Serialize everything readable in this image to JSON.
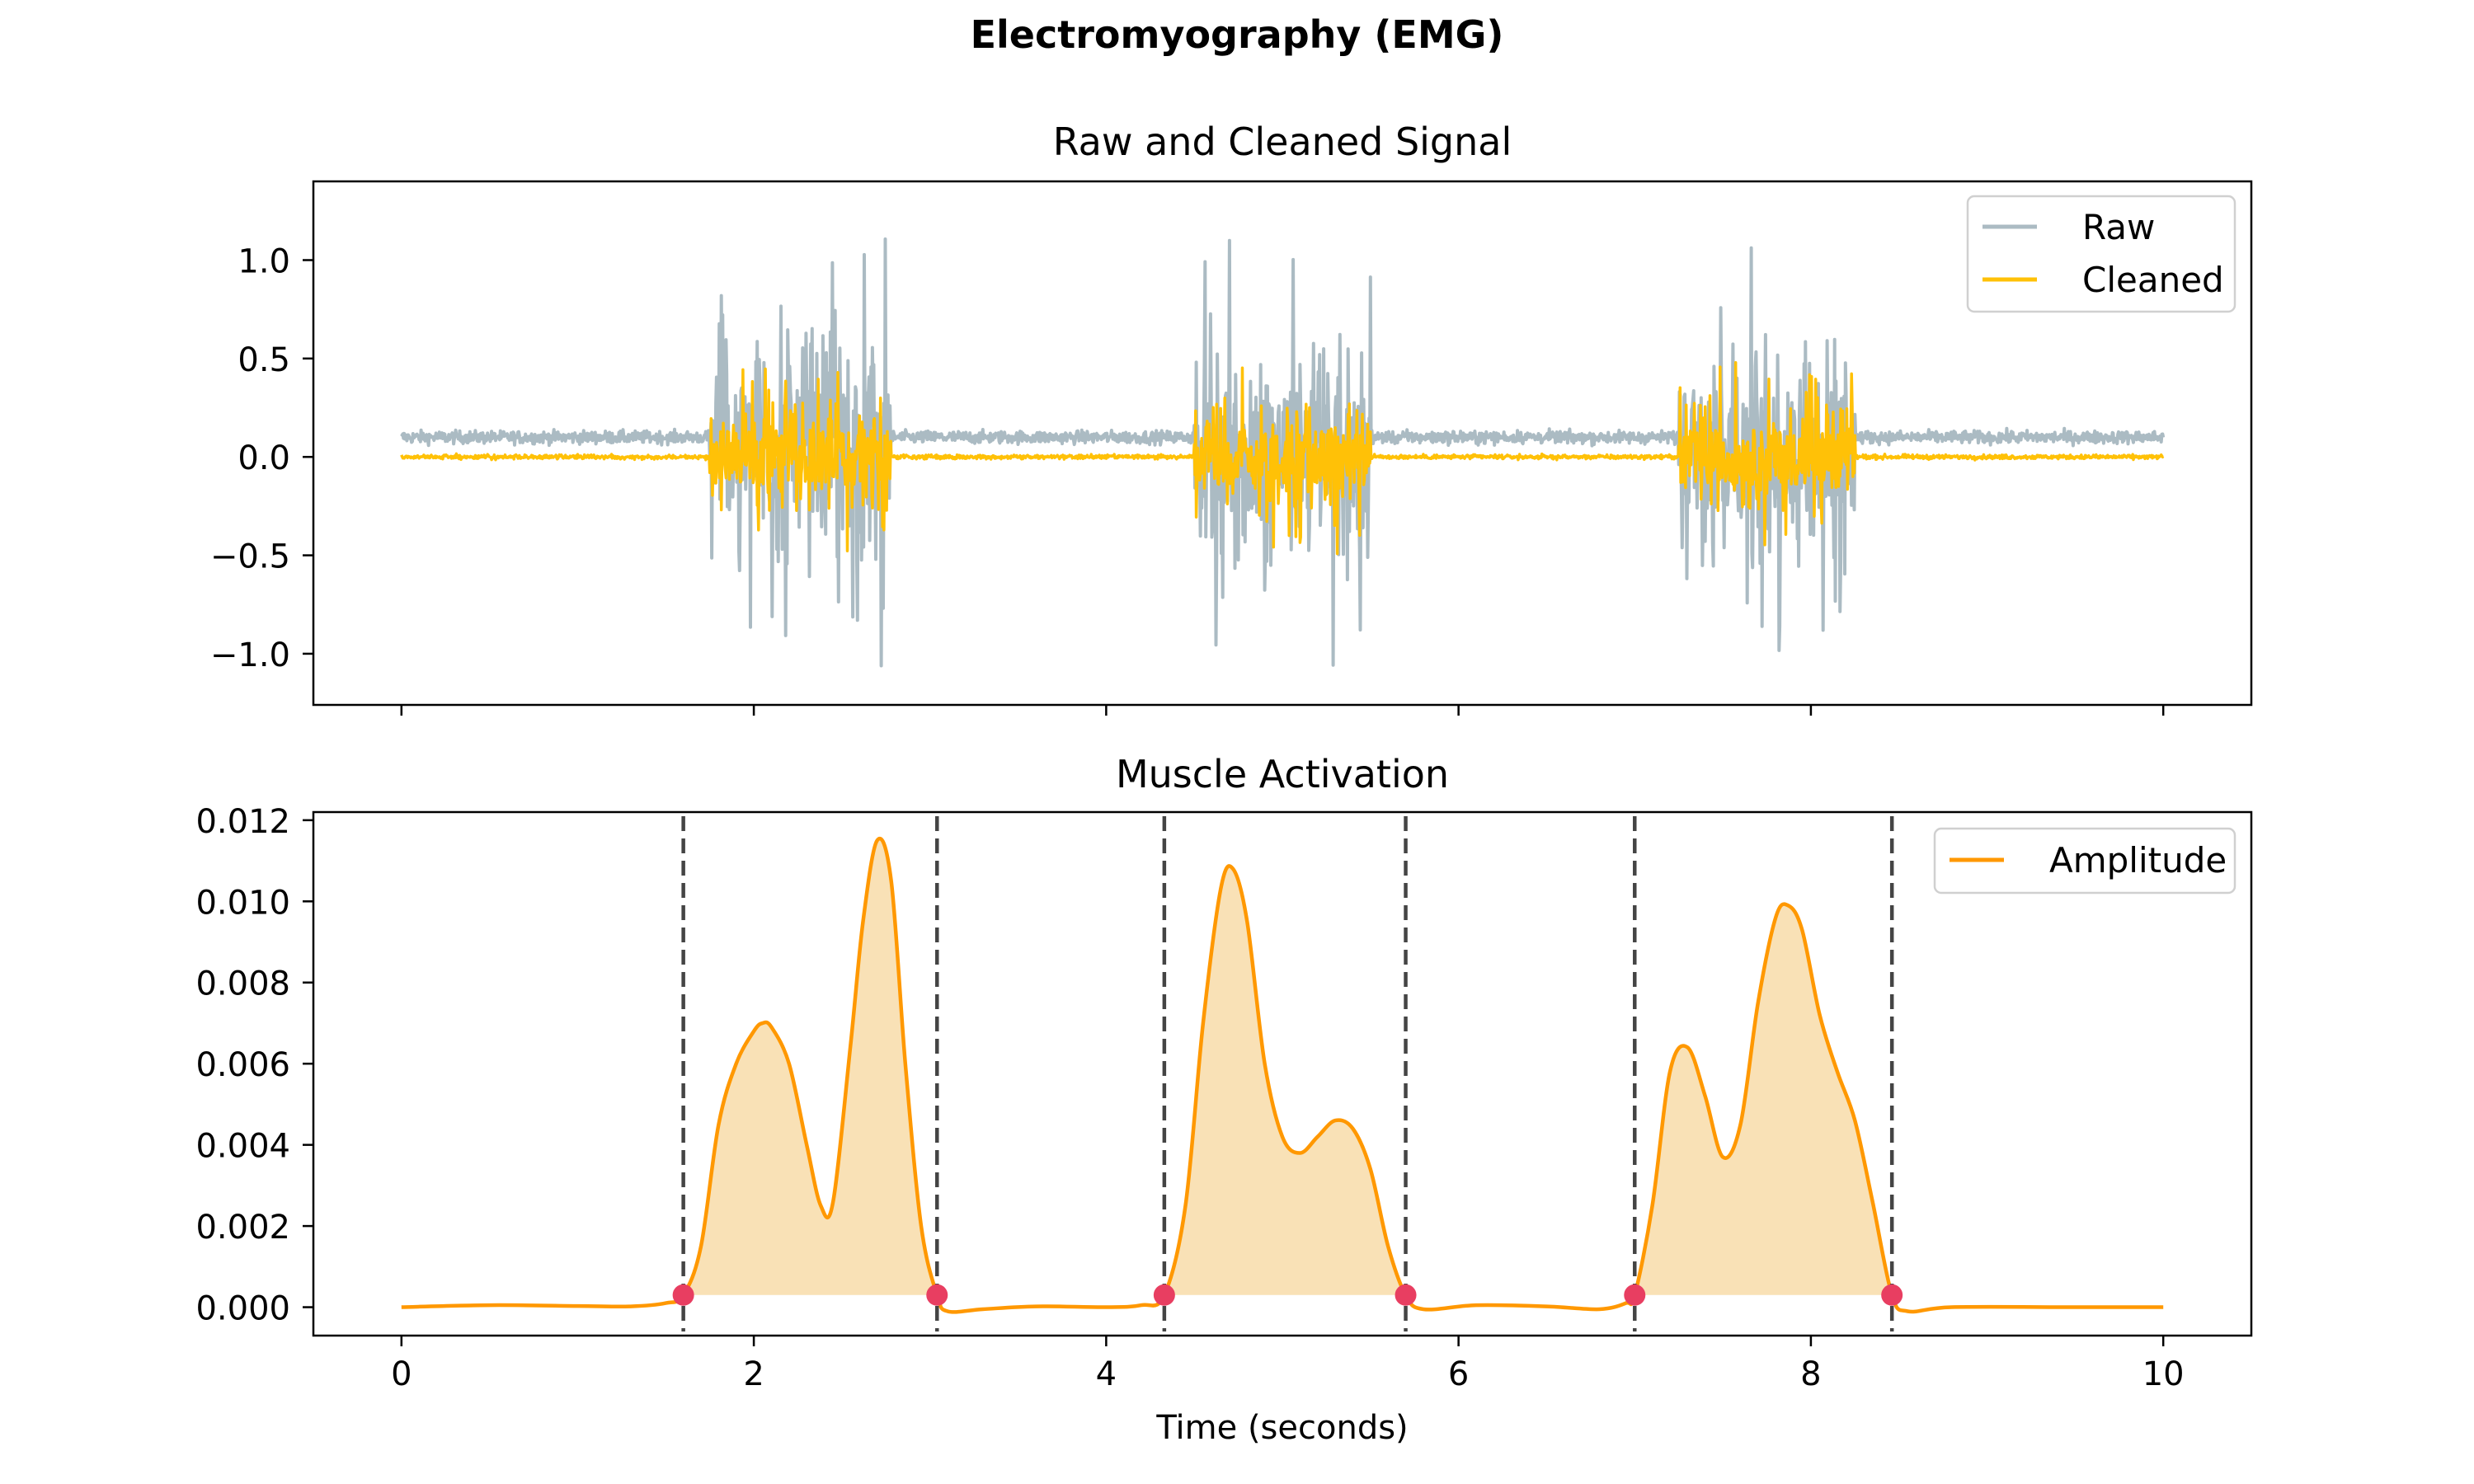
{
  "figure": {
    "title": "Electromyography (EMG)"
  },
  "colors": {
    "raw": "#abbbc3",
    "cleaned": "#ffc107",
    "amplitude": "#ff9800",
    "fill": "#f9dfb2",
    "onset": "#e83e61",
    "vline": "#444444"
  },
  "chart_data": [
    {
      "type": "line",
      "title": "Raw and Cleaned Signal",
      "xlabel": "",
      "ylabel": "",
      "xlim": [
        -0.5,
        10.5
      ],
      "ylim": [
        -1.26,
        1.4
      ],
      "xticks": [
        0,
        2,
        4,
        6,
        8,
        10
      ],
      "yticks": [
        1.0,
        0.5,
        0.0,
        -0.5,
        -1.0
      ],
      "ytick_labels": [
        "1.0",
        "0.5",
        "0.0",
        "−0.5",
        "−1.0"
      ],
      "legend_position": "top-right",
      "series": [
        {
          "name": "Raw",
          "baseline_offset": 0.1,
          "baseline_noise": 0.03,
          "burst_amplitude": 1.1
        },
        {
          "name": "Cleaned",
          "baseline_offset": 0.0,
          "baseline_noise": 0.01,
          "burst_amplitude": 0.5
        }
      ],
      "bursts": [
        [
          1.75,
          2.78
        ],
        [
          4.5,
          5.5
        ],
        [
          7.25,
          8.25
        ]
      ]
    },
    {
      "type": "area",
      "title": "Muscle Activation",
      "xlabel": "Time (seconds)",
      "ylabel": "",
      "xlim": [
        -0.5,
        10.5
      ],
      "ylim": [
        -0.0007,
        0.0122
      ],
      "xticks": [
        0,
        2,
        4,
        6,
        8,
        10
      ],
      "xtick_labels": [
        "0",
        "2",
        "4",
        "6",
        "8",
        "10"
      ],
      "yticks": [
        0.0,
        0.002,
        0.004,
        0.006,
        0.008,
        0.01,
        0.012
      ],
      "ytick_labels": [
        "0.000",
        "0.002",
        "0.004",
        "0.006",
        "0.008",
        "0.010",
        "0.012"
      ],
      "legend_position": "top-right",
      "series": [
        {
          "name": "Amplitude",
          "x": [
            0,
            0.5,
            1.0,
            1.3,
            1.5,
            1.6,
            1.7,
            1.8,
            1.9,
            2.0,
            2.05,
            2.1,
            2.2,
            2.3,
            2.38,
            2.45,
            2.55,
            2.62,
            2.7,
            2.78,
            2.86,
            2.95,
            3.04,
            3.1,
            3.3,
            3.6,
            4.0,
            4.2,
            4.33,
            4.45,
            4.55,
            4.65,
            4.72,
            4.8,
            4.9,
            5.0,
            5.1,
            5.2,
            5.3,
            5.4,
            5.5,
            5.6,
            5.7,
            5.8,
            6.1,
            6.5,
            6.8,
            6.95,
            7.0,
            7.1,
            7.2,
            7.3,
            7.4,
            7.5,
            7.6,
            7.7,
            7.8,
            7.87,
            7.95,
            8.05,
            8.15,
            8.25,
            8.35,
            8.46,
            8.55,
            8.8,
            9.5,
            10.0
          ],
          "y": [
            0.0,
            5e-05,
            3e-05,
            2e-05,
            0.0001,
            0.0003,
            0.0015,
            0.0045,
            0.006,
            0.0068,
            0.007,
            0.0069,
            0.006,
            0.004,
            0.0025,
            0.0026,
            0.0065,
            0.0095,
            0.0115,
            0.0105,
            0.006,
            0.002,
            0.0003,
            -0.0001,
            -5e-05,
            2e-05,
            0.0,
            5e-05,
            0.0003,
            0.0025,
            0.007,
            0.0103,
            0.0108,
            0.0095,
            0.006,
            0.0042,
            0.0038,
            0.0042,
            0.0046,
            0.0044,
            0.0034,
            0.0015,
            0.0003,
            -5e-05,
            5e-05,
            2e-05,
            -5e-05,
            0.0001,
            0.0003,
            0.0025,
            0.0058,
            0.0064,
            0.0052,
            0.0037,
            0.0045,
            0.0075,
            0.0096,
            0.0099,
            0.0093,
            0.0072,
            0.0058,
            0.0046,
            0.0026,
            0.0003,
            -0.0001,
            0.0,
            0.0,
            0.0
          ]
        }
      ],
      "activation_threshold": 0.0003,
      "onsets": [
        1.6,
        4.33,
        7.0
      ],
      "offsets": [
        3.04,
        5.7,
        8.46
      ]
    }
  ]
}
